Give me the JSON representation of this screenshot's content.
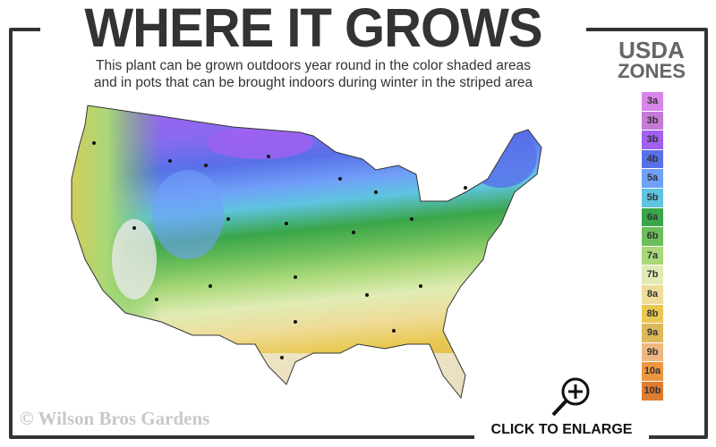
{
  "header": {
    "title": "WHERE IT GROWS",
    "subtitle_line1": "This plant can be grown outdoors year round in the color shaded areas",
    "subtitle_line2": "and in pots that can be brought indoors during winter in the striped area"
  },
  "legend": {
    "title_line1": "USDA",
    "title_line2": "ZONES",
    "zones": [
      {
        "label": "3a",
        "color": "#d884e8"
      },
      {
        "label": "3b",
        "color": "#c57ad8"
      },
      {
        "label": "3b",
        "color": "#a060f0"
      },
      {
        "label": "4b",
        "color": "#5870e8"
      },
      {
        "label": "5a",
        "color": "#70a0f8"
      },
      {
        "label": "5b",
        "color": "#5ec4e0"
      },
      {
        "label": "6a",
        "color": "#3aa64a"
      },
      {
        "label": "6b",
        "color": "#6cbe5a"
      },
      {
        "label": "7a",
        "color": "#a8d878"
      },
      {
        "label": "7b",
        "color": "#e0ecb4"
      },
      {
        "label": "8a",
        "color": "#eedc98"
      },
      {
        "label": "8b",
        "color": "#e8c850"
      },
      {
        "label": "9a",
        "color": "#dcb858"
      },
      {
        "label": "9b",
        "color": "#f0b880"
      },
      {
        "label": "10a",
        "color": "#ec9640"
      },
      {
        "label": "10b",
        "color": "#e07c30"
      }
    ]
  },
  "map": {
    "icon": "usda-zone-map"
  },
  "footer": {
    "copyright": "© Wilson Bros Gardens",
    "enlarge_label": "CLICK TO ENLARGE",
    "enlarge_icon": "magnifier-plus-icon"
  }
}
